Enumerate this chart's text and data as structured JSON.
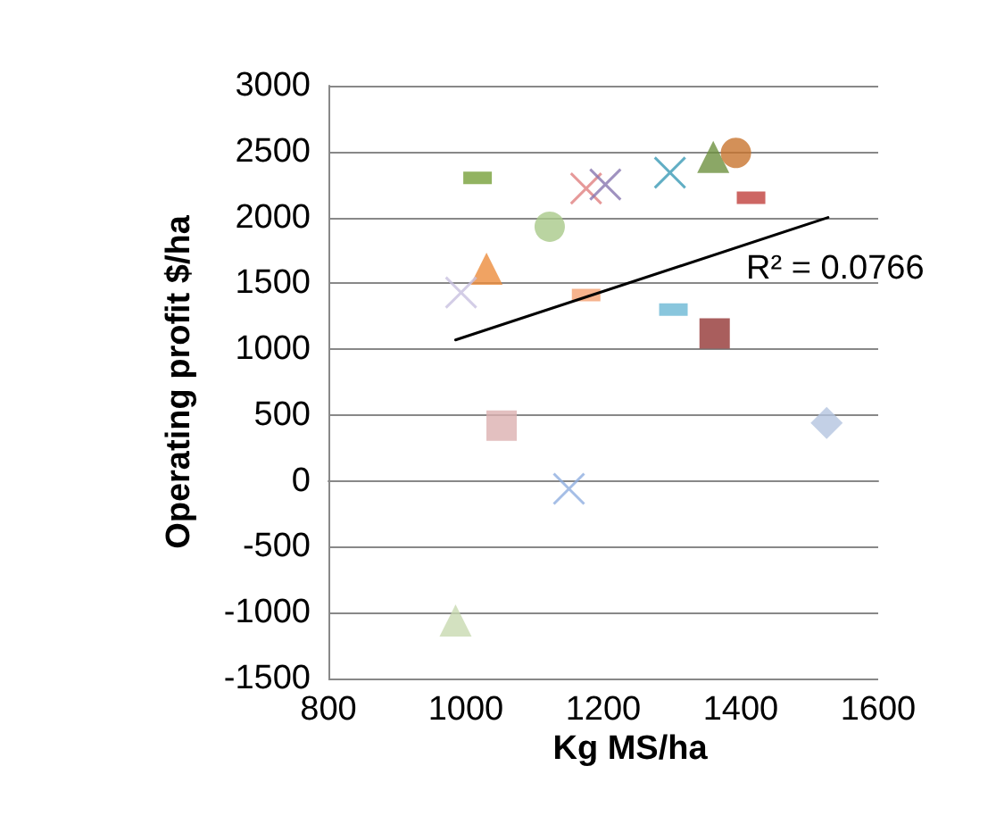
{
  "chart_data": {
    "type": "scatter",
    "xlabel": "Kg MS/ha",
    "ylabel": "Operating profit $/ha",
    "xlim": [
      800,
      1600
    ],
    "xticks": [
      800,
      1000,
      1200,
      1400,
      1600
    ],
    "ylim": [
      -1500,
      3000
    ],
    "yticks": [
      -1500,
      -1000,
      -500,
      0,
      500,
      1000,
      1500,
      2000,
      2500,
      3000
    ],
    "grid": "y",
    "series": [
      {
        "color": "#77a03a",
        "x": [
          1017
        ],
        "values": [
          2300
        ]
      },
      {
        "color": "#e08080",
        "marker": "cross",
        "x": [
          1175
        ],
        "values": [
          2220
        ]
      },
      {
        "color": "#8877b0",
        "marker": "cross",
        "x": [
          1203
        ],
        "values": [
          2250
        ]
      },
      {
        "color": "#3a9ab5",
        "marker": "cross",
        "x": [
          1297
        ],
        "values": [
          2340
        ]
      },
      {
        "color": "#6e9140",
        "marker": "triangle",
        "x": [
          1360
        ],
        "values": [
          2460
        ]
      },
      {
        "color": "#c8742e",
        "marker": "circle",
        "x": [
          1393
        ],
        "values": [
          2490
        ]
      },
      {
        "color": "#c0403c",
        "x": [
          1415
        ],
        "values": [
          2150
        ]
      },
      {
        "color": "#a9c98a",
        "marker": "circle",
        "x": [
          1122
        ],
        "values": [
          1930
        ]
      },
      {
        "color": "#ec8c3c",
        "marker": "triangle",
        "x": [
          1030
        ],
        "values": [
          1610
        ]
      },
      {
        "color": "#c8c0e0",
        "marker": "cross",
        "x": [
          993
        ],
        "values": [
          1430
        ]
      },
      {
        "color": "#f4a070",
        "x": [
          1175
        ],
        "values": [
          1410
        ]
      },
      {
        "color": "#6cb8d4",
        "x": [
          1302
        ],
        "values": [
          1300
        ]
      },
      {
        "color": "#943634",
        "marker": "square",
        "x": [
          1362
        ],
        "values": [
          1120
        ]
      },
      {
        "color": "#dcb0b0",
        "marker": "square",
        "x": [
          1052
        ],
        "values": [
          420
        ]
      },
      {
        "color": "#b4c4e0",
        "marker": "diamond",
        "x": [
          1525
        ],
        "values": [
          440
        ]
      },
      {
        "color": "#8eaee0",
        "marker": "cross",
        "x": [
          1150
        ],
        "values": [
          -60
        ]
      },
      {
        "color": "#c8dab0",
        "marker": "triangle",
        "x": [
          985
        ],
        "values": [
          -1060
        ]
      },
      {
        "type": "line",
        "color": "#000000",
        "marker": "none",
        "x": [
          985,
          1527
        ],
        "values": [
          1070,
          2000
        ]
      }
    ],
    "annotations": [
      "R² = 0.0766"
    ]
  }
}
